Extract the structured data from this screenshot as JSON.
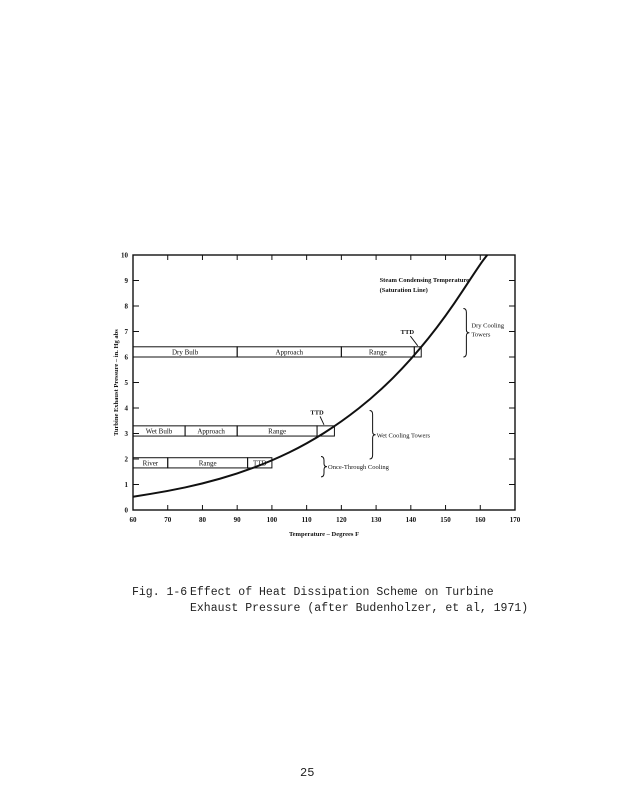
{
  "chart_data": {
    "type": "line",
    "xlabel": "Temperature – Degrees F",
    "ylabel": "Turbine Exhaust Pressure – in. Hg abs",
    "xlim": [
      60,
      170
    ],
    "ylim": [
      0,
      10
    ],
    "x_ticks": [
      60,
      70,
      80,
      90,
      100,
      110,
      120,
      130,
      140,
      150,
      160,
      170
    ],
    "y_ticks": [
      0,
      1,
      2,
      3,
      4,
      5,
      6,
      7,
      8,
      9,
      10
    ],
    "grid": false,
    "series": [
      {
        "name": "Steam Condensing Temperature (Saturation Line)",
        "x": [
          60,
          70,
          80,
          90,
          100,
          110,
          120,
          130,
          140,
          150,
          160,
          162
        ],
        "y": [
          0.52,
          0.74,
          1.03,
          1.42,
          1.93,
          2.59,
          3.45,
          4.52,
          5.88,
          7.57,
          9.65,
          10.0
        ]
      }
    ],
    "bands": [
      {
        "y": 6.2,
        "thickness": 0.4,
        "segments": [
          {
            "label": "Dry Bulb",
            "from": 60,
            "to": 90
          },
          {
            "label": "Approach",
            "from": 90,
            "to": 120
          },
          {
            "label": "Range",
            "from": 120,
            "to": 141
          },
          {
            "label": "",
            "from": 141,
            "to": 143
          }
        ],
        "ttd_label": "TTD",
        "ttd_label_at": [
          139,
          6.9
        ],
        "ttd_x": 142,
        "group_label": "Dry Cooling Towers",
        "brace": [
          6.0,
          7.9
        ]
      },
      {
        "y": 3.1,
        "thickness": 0.4,
        "segments": [
          {
            "label": "Wet Bulb",
            "from": 60,
            "to": 75
          },
          {
            "label": "Approach",
            "from": 75,
            "to": 90
          },
          {
            "label": "Range",
            "from": 90,
            "to": 113
          },
          {
            "label": "",
            "from": 113,
            "to": 118
          }
        ],
        "ttd_label": "TTD",
        "ttd_label_at": [
          113,
          3.75
        ],
        "ttd_x": 115,
        "group_label": "Wet Cooling Towers",
        "brace": [
          2.0,
          3.9
        ]
      },
      {
        "y": 1.85,
        "thickness": 0.4,
        "segments": [
          {
            "label": "River",
            "from": 60,
            "to": 70
          },
          {
            "label": "Range",
            "from": 70,
            "to": 93
          },
          {
            "label": "TTD",
            "from": 93,
            "to": 100
          }
        ],
        "ttd_label": "",
        "group_label": "Once-Through Cooling",
        "brace": [
          1.3,
          2.1
        ]
      }
    ],
    "annotations": [
      {
        "text": "Steam Condensing Temperature",
        "at": [
          131,
          8.95
        ]
      },
      {
        "text": "(Saturation Line)",
        "at": [
          131,
          8.55
        ]
      }
    ]
  },
  "caption": {
    "number": "Fig. 1-6",
    "line1": "Effect of Heat Dissipation Scheme on Turbine",
    "line2": "Exhaust Pressure (after Budenholzer, et al, 1971)"
  },
  "page_number": "25"
}
